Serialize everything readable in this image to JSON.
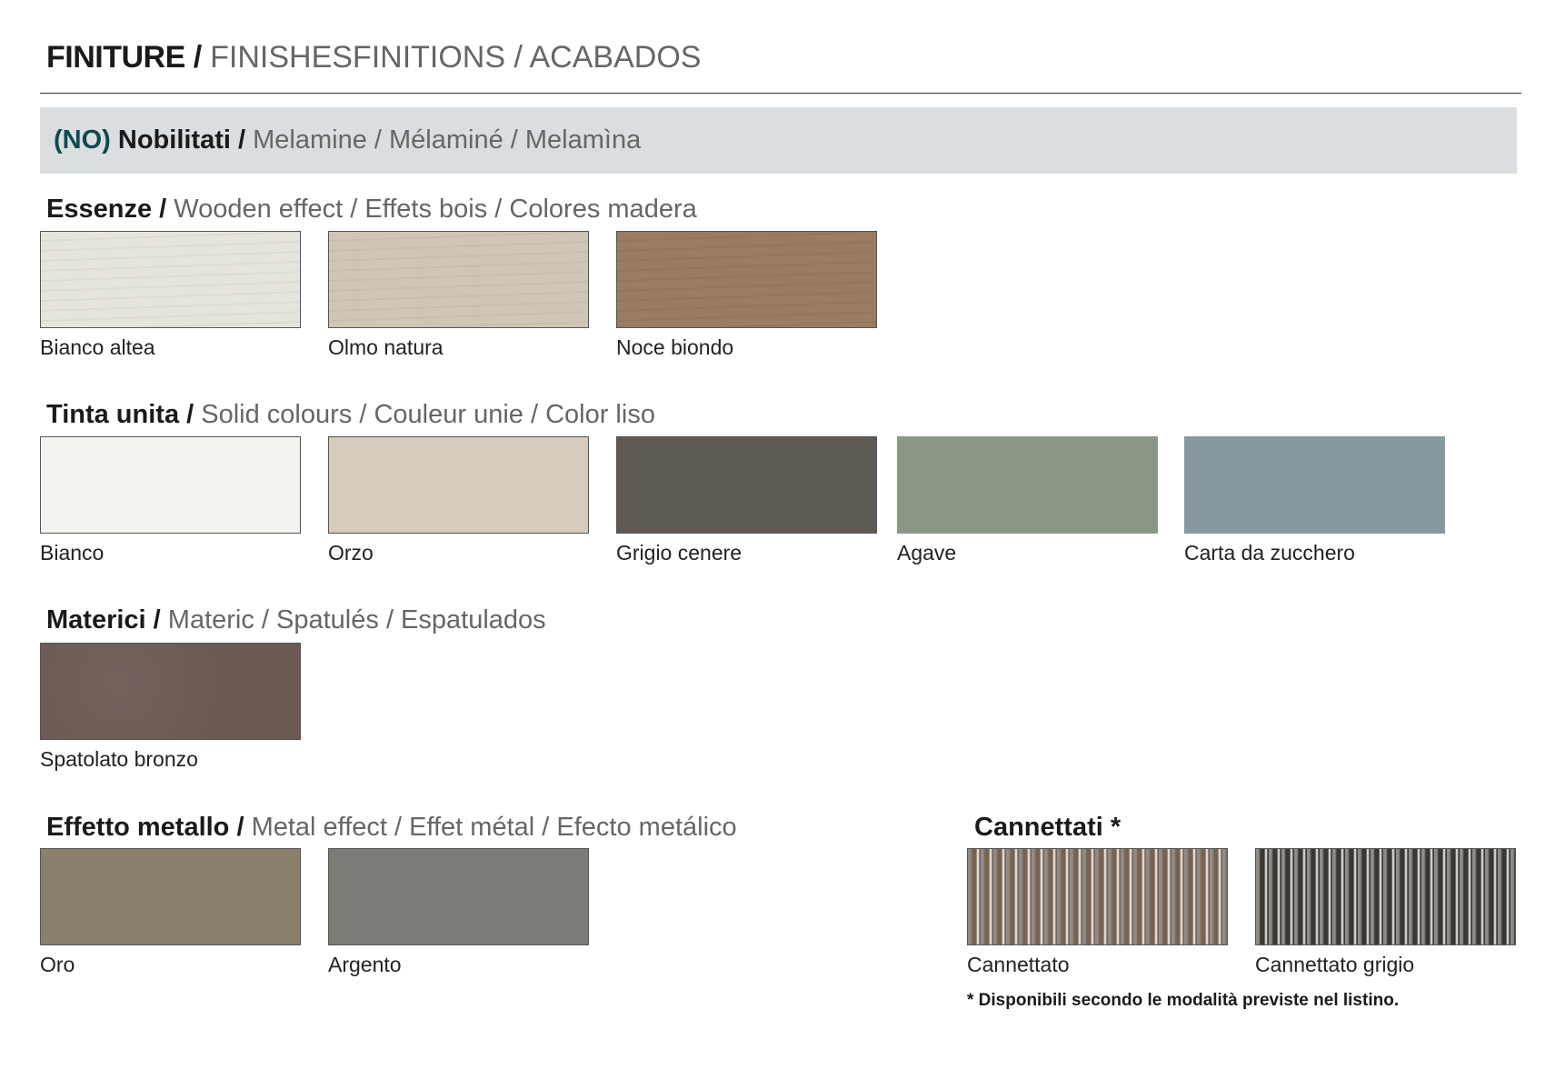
{
  "header": {
    "title_bold": "FINITURE /",
    "title_light": "FINISHESFINITIONS / ACABADOS"
  },
  "band": {
    "code": "(NO)",
    "bold": "Nobilitati /",
    "light": "Melamine / Mélaminé / Melamìna"
  },
  "sections": {
    "essenze": {
      "bold": "Essenze /",
      "light": "Wooden effect / Effets bois / Colores madera",
      "items": [
        {
          "label": "Bianco altea",
          "color": "#e6e5dd"
        },
        {
          "label": "Olmo natura",
          "color": "#cfc6b7"
        },
        {
          "label": "Noce biondo",
          "color": "#9b7b61"
        }
      ]
    },
    "tinta": {
      "bold": "Tinta unita /",
      "light": "Solid colours / Couleur unie / Color liso",
      "items": [
        {
          "label": "Bianco",
          "color": "#f3f3ef"
        },
        {
          "label": "Orzo",
          "color": "#d5cabb"
        },
        {
          "label": "Grigio cenere",
          "color": "#5e5952"
        },
        {
          "label": "Agave",
          "color": "#8a9786"
        },
        {
          "label": "Carta da zucchero",
          "color": "#8699a0"
        }
      ]
    },
    "materici": {
      "bold": "Materici /",
      "light": "Materic / Spatulés / Espatulados",
      "items": [
        {
          "label": "Spatolato bronzo",
          "color": "#6a5a54"
        }
      ]
    },
    "metallo": {
      "bold": "Effetto metallo /",
      "light": "Metal effect / Effet métal / Efecto metálico",
      "items": [
        {
          "label": "Oro",
          "color": "#8a7e6d"
        },
        {
          "label": "Argento",
          "color": "#7a7c76"
        }
      ]
    },
    "cannettati": {
      "bold": "Cannettati *",
      "items": [
        {
          "label": "Cannettato",
          "color": "#7a6250"
        },
        {
          "label": "Cannettato grigio",
          "color": "#3c3630"
        }
      ],
      "note": "* Disponibili secondo le modalità previste nel listino."
    }
  }
}
